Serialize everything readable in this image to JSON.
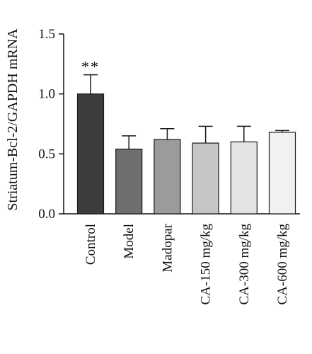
{
  "chart_data": {
    "type": "bar",
    "title": "",
    "ylabel": "Striatum-Bcl-2/GAPDH mRNA",
    "xlabel": "",
    "ylim": [
      0,
      1.5
    ],
    "yticks": [
      "0.0",
      "0.5",
      "1.0",
      "1.5"
    ],
    "categories": [
      "Control",
      "Model",
      "Madopar",
      "CA-150 mg/kg",
      "CA-300 mg/kg",
      "CA-600 mg/kg"
    ],
    "values": [
      1.0,
      0.54,
      0.62,
      0.59,
      0.6,
      0.68
    ],
    "errors": [
      0.16,
      0.11,
      0.09,
      0.14,
      0.13,
      0.015
    ],
    "bar_colors": [
      "#3c3c3c",
      "#6f6f6f",
      "#9b9b9b",
      "#c6c6c6",
      "#e4e4e4",
      "#f1f1f1"
    ],
    "annotations": [
      {
        "category": "Control",
        "text": "**"
      }
    ],
    "grid": false,
    "legend": "none"
  }
}
